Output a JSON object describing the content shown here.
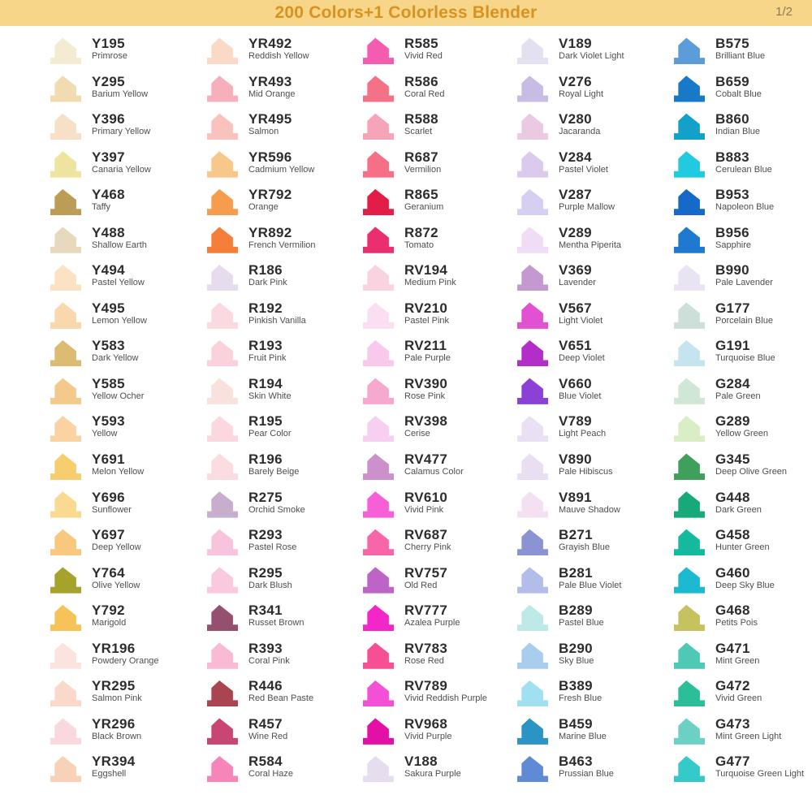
{
  "header": {
    "title": "200 Colors+1 Colorless Blender",
    "page_indicator": "1/2",
    "bg_color": "#F7D589",
    "title_color": "#D9921F"
  },
  "swatch_icon": "marker-chisel-nib",
  "columns": [
    {
      "items": [
        {
          "code": "Y195",
          "name": "Primrose",
          "color": "#F4EBD3"
        },
        {
          "code": "Y295",
          "name": "Barium Yellow",
          "color": "#F0DCB0"
        },
        {
          "code": "Y396",
          "name": "Primary Yellow",
          "color": "#F8DFC8"
        },
        {
          "code": "Y397",
          "name": "Canaria Yellow",
          "color": "#EFE49F"
        },
        {
          "code": "Y468",
          "name": "Taffy",
          "color": "#BD9C55"
        },
        {
          "code": "Y488",
          "name": "Shallow Earth",
          "color": "#E6D9BE"
        },
        {
          "code": "Y494",
          "name": "Pastel Yellow",
          "color": "#FAE2C2"
        },
        {
          "code": "Y495",
          "name": "Lemon Yellow",
          "color": "#F8D8AC"
        },
        {
          "code": "Y583",
          "name": "Dark Yellow",
          "color": "#DCBC72"
        },
        {
          "code": "Y585",
          "name": "Yellow Ocher",
          "color": "#F4CA8C"
        },
        {
          "code": "Y593",
          "name": "Yellow",
          "color": "#FBD2A2"
        },
        {
          "code": "Y691",
          "name": "Melon Yellow",
          "color": "#F7CE6E"
        },
        {
          "code": "Y696",
          "name": "Sunflower",
          "color": "#FADA90"
        },
        {
          "code": "Y697",
          "name": "Deep Yellow",
          "color": "#F8C87E"
        },
        {
          "code": "Y764",
          "name": "Olive Yellow",
          "color": "#A5A32C"
        },
        {
          "code": "Y792",
          "name": "Marigold",
          "color": "#F7C257"
        },
        {
          "code": "YR196",
          "name": "Powdery Orange",
          "color": "#FBE3DE"
        },
        {
          "code": "YR295",
          "name": "Salmon Pink",
          "color": "#FBD9CA"
        },
        {
          "code": "YR296",
          "name": "Black Brown",
          "color": "#F9D8DE"
        },
        {
          "code": "YR394",
          "name": "Eggshell",
          "color": "#F8D2B6"
        }
      ]
    },
    {
      "items": [
        {
          "code": "YR492",
          "name": "Reddish Yellow",
          "color": "#FAD9C6"
        },
        {
          "code": "YR493",
          "name": "Mid Orange",
          "color": "#F6B0BC"
        },
        {
          "code": "YR495",
          "name": "Salmon",
          "color": "#F9C2BC"
        },
        {
          "code": "YR596",
          "name": "Cadmium Yellow",
          "color": "#F8C88A"
        },
        {
          "code": "YR792",
          "name": "Orange",
          "color": "#F79B4C"
        },
        {
          "code": "YR892",
          "name": "French Vermilion",
          "color": "#F57F38"
        },
        {
          "code": "R186",
          "name": "Dark Pink",
          "color": "#E7DCEE"
        },
        {
          "code": "R192",
          "name": "Pinkish Vanilla",
          "color": "#FBD9E1"
        },
        {
          "code": "R193",
          "name": "Fruit Pink",
          "color": "#FAD2DC"
        },
        {
          "code": "R194",
          "name": "Skin White",
          "color": "#F9E1DD"
        },
        {
          "code": "R195",
          "name": "Pear Color",
          "color": "#FBD7E0"
        },
        {
          "code": "R196",
          "name": "Barely Beige",
          "color": "#FBDCE1"
        },
        {
          "code": "R275",
          "name": "Orchid Smoke",
          "color": "#C7AECD"
        },
        {
          "code": "R293",
          "name": "Pastel Rose",
          "color": "#F8C3DD"
        },
        {
          "code": "R295",
          "name": "Dark Blush",
          "color": "#FAC9DF"
        },
        {
          "code": "R341",
          "name": "Russet Brown",
          "color": "#96506F"
        },
        {
          "code": "R393",
          "name": "Coral Pink",
          "color": "#F9BAD5"
        },
        {
          "code": "R446",
          "name": "Red Bean Paste",
          "color": "#AA4450"
        },
        {
          "code": "R457",
          "name": "Wine Red",
          "color": "#C84673"
        },
        {
          "code": "R584",
          "name": "Coral Haze",
          "color": "#F685BA"
        }
      ]
    },
    {
      "items": [
        {
          "code": "R585",
          "name": "Vivid Red",
          "color": "#F45CAF"
        },
        {
          "code": "R586",
          "name": "Coral Red",
          "color": "#F47287"
        },
        {
          "code": "R588",
          "name": "Scarlet",
          "color": "#F6A4B9"
        },
        {
          "code": "R687",
          "name": "Vermilion",
          "color": "#F56F86"
        },
        {
          "code": "R865",
          "name": "Geranium",
          "color": "#E21D48"
        },
        {
          "code": "R872",
          "name": "Tomato",
          "color": "#EA2E70"
        },
        {
          "code": "RV194",
          "name": "Medium Pink",
          "color": "#F9D4E0"
        },
        {
          "code": "RV210",
          "name": "Pastel Pink",
          "color": "#FADFF2"
        },
        {
          "code": "RV211",
          "name": "Pale Purple",
          "color": "#F8C9ED"
        },
        {
          "code": "RV390",
          "name": "Rose Pink",
          "color": "#F6A9CE"
        },
        {
          "code": "RV398",
          "name": "Cerise",
          "color": "#F7D0F1"
        },
        {
          "code": "RV477",
          "name": "Calamus Color",
          "color": "#CC90CC"
        },
        {
          "code": "RV610",
          "name": "Vivid Pink",
          "color": "#F75FD6"
        },
        {
          "code": "RV687",
          "name": "Cherry Pink",
          "color": "#F766A9"
        },
        {
          "code": "RV757",
          "name": "Old Red",
          "color": "#BD64C6"
        },
        {
          "code": "RV777",
          "name": "Azalea Purple",
          "color": "#F327C9"
        },
        {
          "code": "RV783",
          "name": "Rose Red",
          "color": "#F74F94"
        },
        {
          "code": "RV789",
          "name": "Vivid Reddish Purple",
          "color": "#F450D5"
        },
        {
          "code": "RV968",
          "name": "Vivid Purple",
          "color": "#E310A5"
        },
        {
          "code": "V188",
          "name": "Sakura Purple",
          "color": "#E6DDEF"
        }
      ]
    },
    {
      "items": [
        {
          "code": "V189",
          "name": "Dark Violet Light",
          "color": "#E3E1F1"
        },
        {
          "code": "V276",
          "name": "Royal Light",
          "color": "#C9BCE4"
        },
        {
          "code": "V280",
          "name": "Jacaranda",
          "color": "#EACAE3"
        },
        {
          "code": "V284",
          "name": "Pastel Violet",
          "color": "#DCCAEE"
        },
        {
          "code": "V287",
          "name": "Purple Mallow",
          "color": "#D6CFF1"
        },
        {
          "code": "V289",
          "name": "Mentha Piperita",
          "color": "#F1DCF5"
        },
        {
          "code": "V369",
          "name": "Lavender",
          "color": "#C498D0"
        },
        {
          "code": "V567",
          "name": "Light Violet",
          "color": "#E052D2"
        },
        {
          "code": "V651",
          "name": "Deep Violet",
          "color": "#B32DC9"
        },
        {
          "code": "V660",
          "name": "Blue Violet",
          "color": "#8B40D6"
        },
        {
          "code": "V789",
          "name": "Light Peach",
          "color": "#EBDFF3"
        },
        {
          "code": "V890",
          "name": "Pale Hibiscus",
          "color": "#E9DEF2"
        },
        {
          "code": "V891",
          "name": "Mauve Shadow",
          "color": "#F3E1F3"
        },
        {
          "code": "B271",
          "name": "Grayish Blue",
          "color": "#8A94D3"
        },
        {
          "code": "B281",
          "name": "Pale Blue Violet",
          "color": "#B3BDE9"
        },
        {
          "code": "B289",
          "name": "Pastel Blue",
          "color": "#BEE9E9"
        },
        {
          "code": "B290",
          "name": "Sky Blue",
          "color": "#A9CEED"
        },
        {
          "code": "B389",
          "name": "Fresh Blue",
          "color": "#A0E0F1"
        },
        {
          "code": "B459",
          "name": "Marine Blue",
          "color": "#2C93C5"
        },
        {
          "code": "B463",
          "name": "Prussian Blue",
          "color": "#5F8BD5"
        }
      ]
    },
    {
      "items": [
        {
          "code": "B575",
          "name": "Brilliant Blue",
          "color": "#5C9CD9"
        },
        {
          "code": "B659",
          "name": "Cobalt Blue",
          "color": "#1979C9"
        },
        {
          "code": "B860",
          "name": "Indian Blue",
          "color": "#14A1C9"
        },
        {
          "code": "B883",
          "name": "Cerulean Blue",
          "color": "#21C9E1"
        },
        {
          "code": "B953",
          "name": "Napoleon Blue",
          "color": "#1469C9"
        },
        {
          "code": "B956",
          "name": "Sapphire",
          "color": "#1F79D1"
        },
        {
          "code": "B990",
          "name": "Pale Lavender",
          "color": "#E9E3F3"
        },
        {
          "code": "G177",
          "name": "Porcelain Blue",
          "color": "#CDDFD9"
        },
        {
          "code": "G191",
          "name": "Turquoise Blue",
          "color": "#C6E4EF"
        },
        {
          "code": "G284",
          "name": "Pale Green",
          "color": "#D0E7D5"
        },
        {
          "code": "G289",
          "name": "Yellow Green",
          "color": "#DAEEC5"
        },
        {
          "code": "G345",
          "name": "Deep Olive Green",
          "color": "#409F5B"
        },
        {
          "code": "G448",
          "name": "Dark Green",
          "color": "#17A979"
        },
        {
          "code": "G458",
          "name": "Hunter Green",
          "color": "#15B99D"
        },
        {
          "code": "G460",
          "name": "Deep Sky Blue",
          "color": "#1DB9D1"
        },
        {
          "code": "G468",
          "name": "Petits Pois",
          "color": "#C5C25F"
        },
        {
          "code": "G471",
          "name": "Mint Green",
          "color": "#4DC9B5"
        },
        {
          "code": "G472",
          "name": "Vivid Green",
          "color": "#2CBF97"
        },
        {
          "code": "G473",
          "name": "Mint Green Light",
          "color": "#6DD0C5"
        },
        {
          "code": "G477",
          "name": "Turquoise Green Light",
          "color": "#35C9C9"
        }
      ]
    }
  ]
}
